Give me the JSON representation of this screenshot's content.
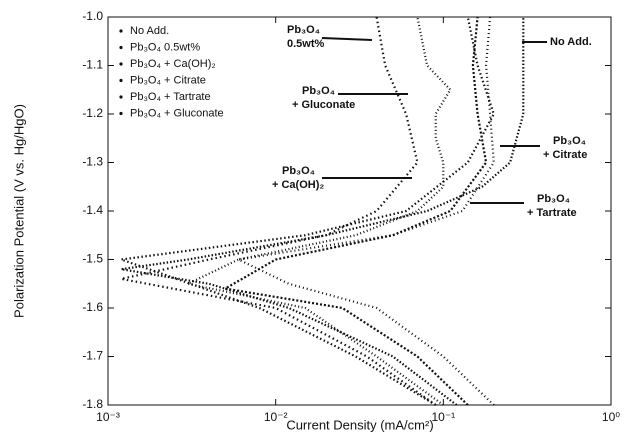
{
  "chart_data": {
    "type": "line",
    "xlabel": "Current Density (mA/cm²)",
    "ylabel": "Polarization Potential (V vs. Hg/HgO)",
    "xlog": true,
    "xlim": [
      0.001,
      1
    ],
    "xticks": [
      {
        "value": 0.001,
        "label": "10⁻³"
      },
      {
        "value": 0.01,
        "label": "10⁻²"
      },
      {
        "value": 0.1,
        "label": "10⁻¹"
      },
      {
        "value": 1,
        "label": "10⁰"
      }
    ],
    "ylim": [
      -1.8,
      -1.0
    ],
    "yticks": [
      -1.8,
      -1.7,
      -1.6,
      -1.5,
      -1.4,
      -1.3,
      -1.2,
      -1.1,
      {
        "value": -1.0,
        "label": "-1.0"
      }
    ],
    "legend": "upper left",
    "series": [
      {
        "name": "No Add.",
        "color": "#111111",
        "x": [
          0.12,
          0.05,
          0.012,
          0.004,
          0.0012,
          0.003,
          0.02,
          0.08,
          0.17,
          0.25,
          0.3,
          0.3,
          0.3
        ],
        "values": [
          -1.8,
          -1.7,
          -1.6,
          -1.55,
          -1.52,
          -1.5,
          -1.45,
          -1.4,
          -1.35,
          -1.3,
          -1.2,
          -1.1,
          -1.0
        ]
      },
      {
        "name": "Pb₃O₄ 0.5wt%",
        "color": "#111111",
        "x": [
          0.09,
          0.035,
          0.01,
          0.0012,
          0.004,
          0.02,
          0.04,
          0.07,
          0.06,
          0.045,
          0.04
        ],
        "values": [
          -1.8,
          -1.7,
          -1.6,
          -1.54,
          -1.5,
          -1.45,
          -1.4,
          -1.3,
          -1.2,
          -1.1,
          -1.0
        ]
      },
      {
        "name": "Pb₃O₄ + Ca(OH)₂",
        "color": "#111111",
        "x": [
          0.1,
          0.04,
          0.015,
          0.003,
          0.006,
          0.03,
          0.07,
          0.1,
          0.1,
          0.09,
          0.09,
          0.11,
          0.08,
          0.07
        ],
        "values": [
          -1.8,
          -1.7,
          -1.6,
          -1.55,
          -1.5,
          -1.45,
          -1.4,
          -1.35,
          -1.3,
          -1.25,
          -1.2,
          -1.15,
          -1.1,
          -1.0
        ]
      },
      {
        "name": "Pb₃O₄ + Citrate",
        "color": "#111111",
        "x": [
          0.14,
          0.07,
          0.025,
          0.005,
          0.01,
          0.05,
          0.11,
          0.18,
          0.16,
          0.15,
          0.16
        ],
        "values": [
          -1.8,
          -1.7,
          -1.6,
          -1.56,
          -1.5,
          -1.45,
          -1.4,
          -1.3,
          -1.2,
          -1.1,
          -1.0
        ]
      },
      {
        "name": "Pb₃O₄ + Tartrate",
        "color": "#111111",
        "x": [
          0.2,
          0.1,
          0.04,
          0.012,
          0.006,
          0.05,
          0.13,
          0.2,
          0.19,
          0.18,
          0.19
        ],
        "values": [
          -1.8,
          -1.7,
          -1.6,
          -1.55,
          -1.5,
          -1.45,
          -1.4,
          -1.3,
          -1.2,
          -1.1,
          -1.0
        ]
      },
      {
        "name": "Pb₃O₄ + Gluconate",
        "color": "#111111",
        "x": [
          0.09,
          0.03,
          0.008,
          0.0012,
          0.015,
          0.06,
          0.14,
          0.2,
          0.16,
          0.14
        ],
        "values": [
          -1.8,
          -1.7,
          -1.6,
          -1.5,
          -1.45,
          -1.4,
          -1.3,
          -1.2,
          -1.1,
          -1.0
        ]
      }
    ],
    "annotations": [
      {
        "text": [
          "No Add."
        ]
      },
      {
        "text": [
          "Pb₃O₄",
          "0.5wt%"
        ]
      },
      {
        "text": [
          "Pb₃O₄",
          "+ Gluconate"
        ]
      },
      {
        "text": [
          "Pb₃O₄",
          "+ Citrate"
        ]
      },
      {
        "text": [
          "Pb₃O₄",
          "+ Ca(OH)₂"
        ]
      },
      {
        "text": [
          "Pb₃O₄",
          "+ Tartrate"
        ]
      }
    ]
  }
}
